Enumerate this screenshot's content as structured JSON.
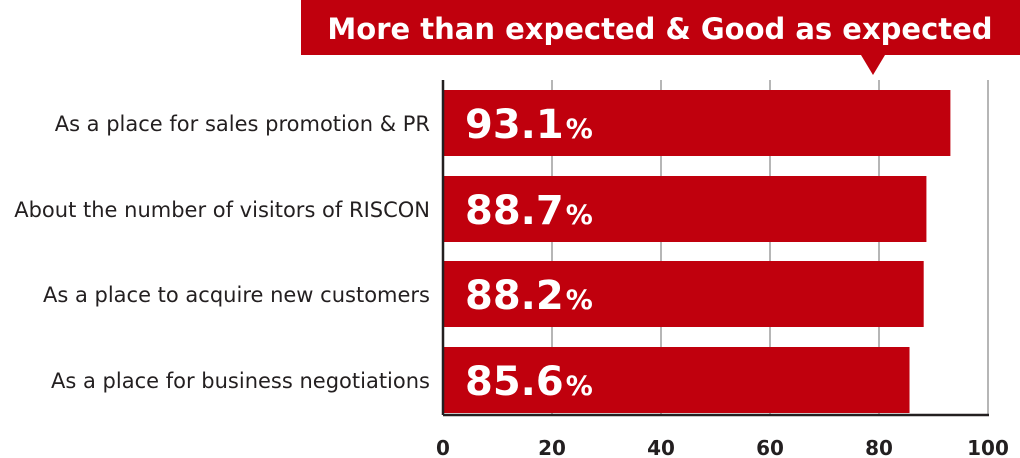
{
  "banner": {
    "text": "More than expected & Good as expected",
    "color": "#c0000d"
  },
  "chart_data": {
    "type": "bar",
    "orientation": "horizontal",
    "categories": [
      "As a place for sales promotion & PR",
      "About the number of visitors of RISCON",
      "As a place to acquire new customers",
      "As a place for business negotiations"
    ],
    "values": [
      93.1,
      88.7,
      88.2,
      85.6
    ],
    "value_labels": [
      "93.1",
      "88.7",
      "88.2",
      "85.6"
    ],
    "value_unit": "%",
    "xlim": [
      0,
      100
    ],
    "xticks": [
      "0",
      "20",
      "40",
      "60",
      "80",
      "100"
    ],
    "bar_color": "#c0000d",
    "grid": "vertical",
    "grid_color": "#9e9e9e",
    "axis_color": "#231f20"
  }
}
